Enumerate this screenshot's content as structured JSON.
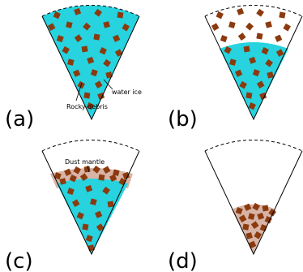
{
  "panels": [
    {
      "letter": "(a)",
      "state": "ice and debris fill the whole wedge"
    },
    {
      "letter": "(b)",
      "state": "ice lost from the upper part, debris remains above"
    },
    {
      "letter": "(c)",
      "state": "dust mantle forms at the top of the ice"
    },
    {
      "letter": "(d)",
      "state": "only compacted rocky debris remains at the bottom"
    }
  ],
  "labels": {
    "rocky_debris": "Rocky debris",
    "water_ice": "water ice",
    "dust_mantle": "Dust mantle"
  },
  "colors": {
    "ice": "#26d3df",
    "rock": "#8b3a0e",
    "dust": "#d8b4a6",
    "outline": "#000000"
  }
}
